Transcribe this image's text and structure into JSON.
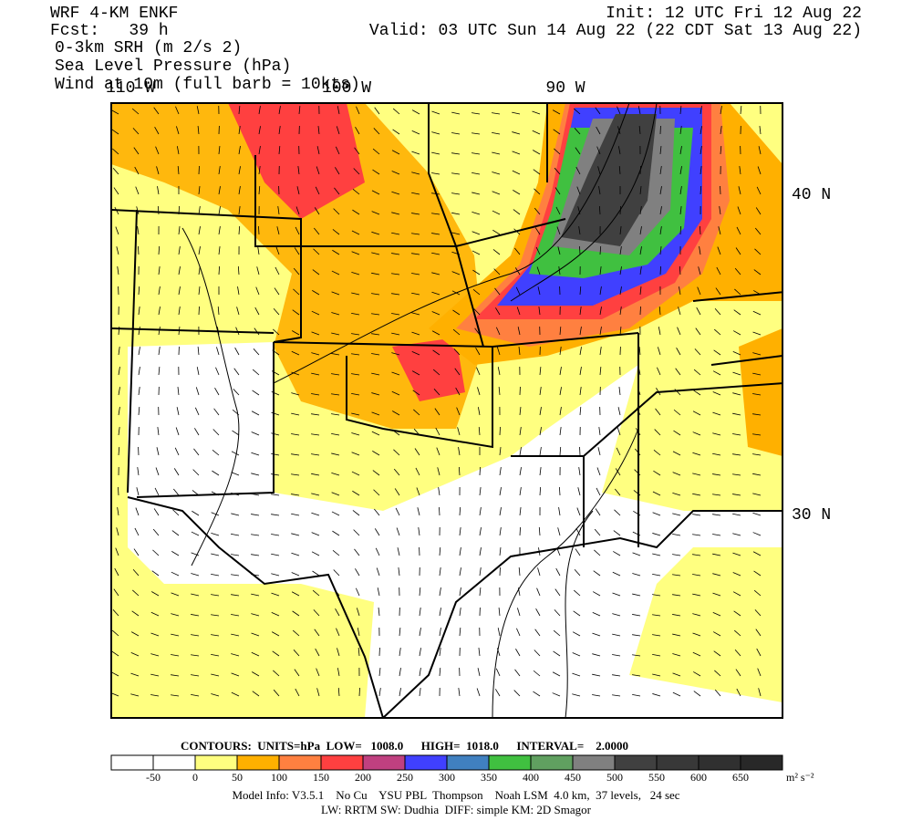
{
  "header": {
    "left": [
      "WRF 4-KM ENKF",
      "Fcst:   39 h",
      "0-3km SRH (m 2/s 2)",
      "Sea Level Pressure (hPa)",
      "Wind at 10m (full barb = 10kts)"
    ],
    "right": [
      "Init: 12 UTC Fri 12 Aug 22",
      "Valid: 03 UTC Sun 14 Aug 22 (22 CDT Sat 13 Aug 22)"
    ]
  },
  "map": {
    "lon_labels": [
      "110 W",
      "100 W",
      "90 W"
    ],
    "lat_labels": [
      "40 N",
      "30 N"
    ]
  },
  "contours": "CONTOURS:  UNITS=hPa  LOW=   1008.0      HIGH=  1018.0      INTERVAL=    2.0000",
  "colorbar": {
    "colors": [
      "#ffffff",
      "#ffffff",
      "#ffff80",
      "#ffb000",
      "#ff8040",
      "#ff4040",
      "#c04080",
      "#4040ff",
      "#4080c0",
      "#40c040",
      "#60a060",
      "#808080",
      "#404040",
      "#383838",
      "#303030",
      "#282828"
    ],
    "labels": [
      -50,
      0,
      50,
      100,
      150,
      200,
      250,
      300,
      350,
      400,
      450,
      500,
      550,
      600,
      650
    ],
    "units": "m² s⁻²"
  },
  "footer": [
    "Model Info: V3.5.1    No Cu    YSU PBL  Thompson    Noah LSM  4.0 km,  37 levels,   24 sec",
    "LW: RRTM SW: Dudhia  DIFF: simple KM: 2D Smagor"
  ]
}
